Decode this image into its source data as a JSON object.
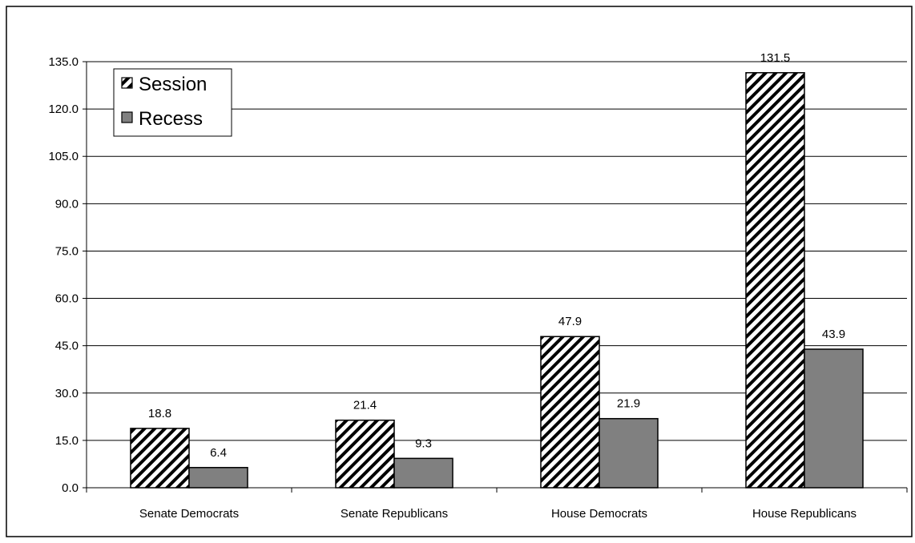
{
  "chart_data": {
    "type": "bar",
    "categories": [
      "Senate Democrats",
      "Senate Republicans",
      "House Democrats",
      "House Republicans"
    ],
    "series": [
      {
        "name": "Session",
        "values": [
          18.8,
          21.4,
          47.9,
          131.5
        ],
        "style": "hatched",
        "color": "#000000"
      },
      {
        "name": "Recess",
        "values": [
          6.4,
          9.3,
          21.9,
          43.9
        ],
        "style": "solid",
        "color": "#808080"
      }
    ],
    "value_labels": {
      "session": [
        "18.8",
        "21.4",
        "47.9",
        "131.5"
      ],
      "recess": [
        "6.4",
        "9.3",
        "21.9",
        "43.9"
      ]
    },
    "ylim": [
      0,
      135
    ],
    "yticks": [
      0,
      15,
      30,
      45,
      60,
      75,
      90,
      105,
      120,
      135
    ],
    "ytick_labels": [
      "0.0",
      "15.0",
      "30.0",
      "45.0",
      "60.0",
      "75.0",
      "90.0",
      "105.0",
      "120.0",
      "135.0"
    ],
    "grid": true,
    "legend_position": "top-left",
    "title": "",
    "xlabel": "",
    "ylabel": ""
  }
}
